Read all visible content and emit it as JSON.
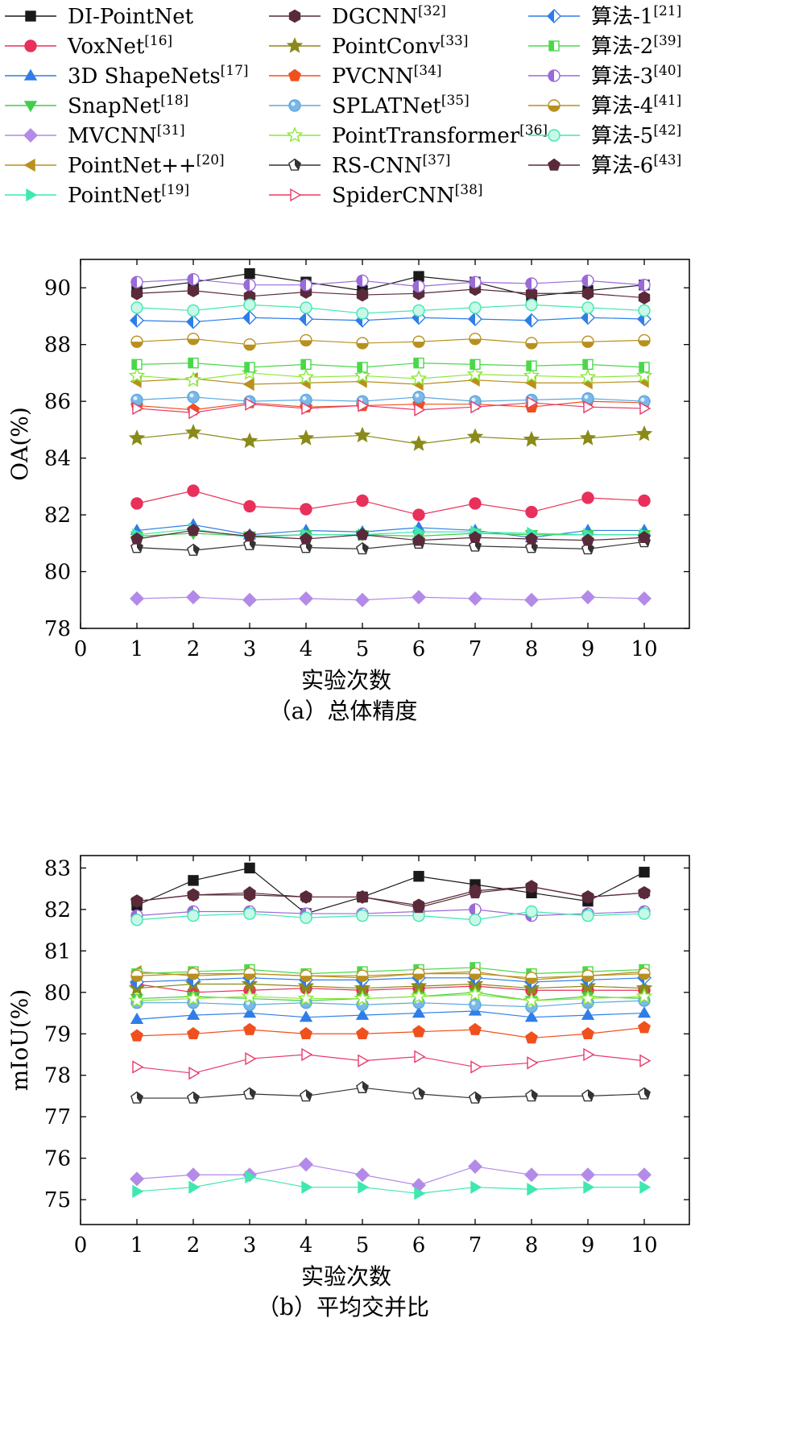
{
  "legend": [
    {
      "label": "DI-PointNet",
      "ref": "",
      "marker": "square",
      "color": "#1a1a1a",
      "fill": "#1a1a1a",
      "col": 0
    },
    {
      "label": "VoxNet",
      "ref": "[16]",
      "marker": "circle",
      "color": "#e8305a",
      "fill": "#e8305a",
      "col": 0
    },
    {
      "label": "3D ShapeNets",
      "ref": "[17]",
      "marker": "triangle-up",
      "color": "#2f7de8",
      "fill": "#2f7de8",
      "col": 0
    },
    {
      "label": "SnapNet",
      "ref": "[18]",
      "marker": "triangle-down",
      "color": "#3fcf4a",
      "fill": "#3fcf4a",
      "col": 0
    },
    {
      "label": "MVCNN",
      "ref": "[31]",
      "marker": "diamond",
      "color": "#b48ae8",
      "fill": "#b48ae8",
      "col": 0
    },
    {
      "label": "PointNet++",
      "ref": "[20]",
      "marker": "triangle-left",
      "color": "#b8901e",
      "fill": "#b8901e",
      "col": 0
    },
    {
      "label": "PointNet",
      "ref": "[19]",
      "marker": "triangle-right",
      "color": "#3ee8b0",
      "fill": "#3ee8b0",
      "col": 0
    },
    {
      "label": "DGCNN",
      "ref": "[32]",
      "marker": "hexagon",
      "color": "#5a2a3a",
      "fill": "#5a2a3a",
      "col": 1
    },
    {
      "label": "PointConv",
      "ref": "[33]",
      "marker": "star",
      "color": "#8a8a1a",
      "fill": "#8a8a1a",
      "col": 1
    },
    {
      "label": "PVCNN",
      "ref": "[34]",
      "marker": "pentagon",
      "color": "#f0501e",
      "fill": "#f0501e",
      "col": 1
    },
    {
      "label": "SPLATNet",
      "ref": "[35]",
      "marker": "circle-shaded",
      "color": "#5aa8e0",
      "fill": "#7ab8e8",
      "col": 1
    },
    {
      "label": "PointTransformer",
      "ref": "[36]",
      "marker": "star-open",
      "color": "#8ae83a",
      "fill": "none",
      "col": 1
    },
    {
      "label": "RS-CNN",
      "ref": "[37]",
      "marker": "pentagon-half",
      "color": "#333333",
      "fill": "#333333",
      "col": 1
    },
    {
      "label": "SpiderCNN",
      "ref": "[38]",
      "marker": "triangle-right-open",
      "color": "#e83a6a",
      "fill": "none",
      "col": 1
    },
    {
      "label": "算法-1",
      "ref": "[21]",
      "marker": "diamond-half",
      "color": "#2f7de8",
      "fill": "#2f7de8",
      "col": 2
    },
    {
      "label": "算法-2",
      "ref": "[39]",
      "marker": "square-half",
      "color": "#4ad84a",
      "fill": "#4ad84a",
      "col": 2
    },
    {
      "label": "算法-3",
      "ref": "[40]",
      "marker": "circle-half",
      "color": "#9a6ad8",
      "fill": "#9a6ad8",
      "col": 2
    },
    {
      "label": "算法-4",
      "ref": "[41]",
      "marker": "circle-half-h",
      "color": "#b8901e",
      "fill": "#b8901e",
      "col": 2
    },
    {
      "label": "算法-5",
      "ref": "[42]",
      "marker": "circle-open",
      "color": "#3ee8b0",
      "fill": "#c8f8e8",
      "col": 2
    },
    {
      "label": "算法-6",
      "ref": "[43]",
      "marker": "pentagon",
      "color": "#5a2a3a",
      "fill": "#5a2a3a",
      "col": 2
    }
  ],
  "chart_data": [
    {
      "type": "line",
      "caption": "（a）总体精度",
      "xlabel": "实验次数",
      "ylabel": "OA(%)",
      "xlim": [
        0,
        10.8
      ],
      "ylim": [
        78,
        91
      ],
      "x_ticks": [
        0,
        1,
        2,
        3,
        4,
        5,
        6,
        7,
        8,
        9,
        10
      ],
      "y_ticks": [
        78,
        80,
        82,
        84,
        86,
        88,
        90
      ],
      "x": [
        1,
        2,
        3,
        4,
        5,
        6,
        7,
        8,
        9,
        10
      ],
      "series": [
        {
          "name": "DI-PointNet",
          "values": [
            89.95,
            90.2,
            90.5,
            90.2,
            89.9,
            90.4,
            90.2,
            89.7,
            89.9,
            90.1
          ]
        },
        {
          "name": "VoxNet",
          "values": [
            82.4,
            82.85,
            82.3,
            82.2,
            82.5,
            82.0,
            82.4,
            82.1,
            82.6,
            82.5
          ]
        },
        {
          "name": "3D ShapeNets",
          "values": [
            81.45,
            81.65,
            81.3,
            81.45,
            81.4,
            81.55,
            81.45,
            81.2,
            81.45,
            81.45
          ]
        },
        {
          "name": "SnapNet",
          "values": [
            81.25,
            81.35,
            81.25,
            81.3,
            81.3,
            81.25,
            81.35,
            81.3,
            81.3,
            81.3
          ]
        },
        {
          "name": "MVCNN",
          "values": [
            79.05,
            79.1,
            79.0,
            79.05,
            79.0,
            79.1,
            79.05,
            79.0,
            79.1,
            79.05
          ]
        },
        {
          "name": "PointNet++",
          "values": [
            86.7,
            86.8,
            86.6,
            86.65,
            86.7,
            86.6,
            86.75,
            86.65,
            86.65,
            86.7
          ]
        },
        {
          "name": "PointNet",
          "values": [
            81.3,
            81.5,
            81.2,
            81.3,
            81.3,
            81.4,
            81.4,
            81.35,
            81.3,
            81.3
          ]
        },
        {
          "name": "DGCNN",
          "values": [
            89.8,
            89.9,
            89.7,
            89.85,
            89.75,
            89.8,
            89.95,
            89.8,
            89.8,
            89.65
          ]
        },
        {
          "name": "PointConv",
          "values": [
            84.7,
            84.9,
            84.6,
            84.7,
            84.8,
            84.5,
            84.75,
            84.65,
            84.7,
            84.85
          ]
        },
        {
          "name": "PVCNN",
          "values": [
            85.85,
            85.7,
            85.95,
            85.8,
            85.85,
            85.9,
            85.9,
            85.8,
            86.0,
            85.95
          ]
        },
        {
          "name": "SPLATNet",
          "values": [
            86.05,
            86.15,
            86.0,
            86.05,
            86.0,
            86.15,
            86.0,
            86.05,
            86.1,
            86.0
          ]
        },
        {
          "name": "PointTransformer",
          "values": [
            86.9,
            86.75,
            87.0,
            86.85,
            86.9,
            86.8,
            86.95,
            86.9,
            86.85,
            86.9
          ]
        },
        {
          "name": "RS-CNN",
          "values": [
            80.85,
            80.75,
            80.95,
            80.85,
            80.8,
            81.0,
            80.9,
            80.85,
            80.8,
            81.05
          ]
        },
        {
          "name": "SpiderCNN",
          "values": [
            85.75,
            85.6,
            85.9,
            85.75,
            85.85,
            85.7,
            85.8,
            85.95,
            85.8,
            85.75
          ]
        },
        {
          "name": "算法-1",
          "values": [
            88.85,
            88.8,
            88.95,
            88.9,
            88.85,
            88.95,
            88.9,
            88.85,
            88.95,
            88.9
          ]
        },
        {
          "name": "算法-2",
          "values": [
            87.3,
            87.35,
            87.2,
            87.3,
            87.2,
            87.35,
            87.3,
            87.25,
            87.3,
            87.2
          ]
        },
        {
          "name": "算法-3",
          "values": [
            90.2,
            90.3,
            90.1,
            90.1,
            90.25,
            90.05,
            90.2,
            90.15,
            90.25,
            90.1
          ]
        },
        {
          "name": "算法-4",
          "values": [
            88.1,
            88.2,
            88.0,
            88.15,
            88.05,
            88.1,
            88.2,
            88.05,
            88.1,
            88.15
          ]
        },
        {
          "name": "算法-5",
          "values": [
            89.3,
            89.2,
            89.4,
            89.3,
            89.1,
            89.2,
            89.3,
            89.4,
            89.3,
            89.2
          ]
        },
        {
          "name": "算法-6",
          "values": [
            81.15,
            81.45,
            81.25,
            81.15,
            81.3,
            81.1,
            81.2,
            81.15,
            81.1,
            81.2
          ]
        }
      ]
    },
    {
      "type": "line",
      "caption": "（b）平均交并比",
      "xlabel": "实验次数",
      "ylabel": "mIoU(%)",
      "xlim": [
        0,
        10.8
      ],
      "ylim": [
        74.4,
        83.3
      ],
      "x_ticks": [
        0,
        1,
        2,
        3,
        4,
        5,
        6,
        7,
        8,
        9,
        10
      ],
      "y_ticks": [
        75,
        76,
        77,
        78,
        79,
        80,
        81,
        82,
        83
      ],
      "x": [
        1,
        2,
        3,
        4,
        5,
        6,
        7,
        8,
        9,
        10
      ],
      "series": [
        {
          "name": "DI-PointNet",
          "values": [
            82.1,
            82.7,
            83.0,
            81.9,
            82.3,
            82.8,
            82.6,
            82.4,
            82.2,
            82.9
          ]
        },
        {
          "name": "VoxNet",
          "values": [
            80.2,
            80.0,
            80.05,
            80.1,
            80.05,
            80.1,
            80.15,
            80.05,
            80.05,
            80.05
          ]
        },
        {
          "name": "3D ShapeNets",
          "values": [
            79.35,
            79.45,
            79.5,
            79.4,
            79.45,
            79.5,
            79.55,
            79.4,
            79.45,
            79.5
          ]
        },
        {
          "name": "SnapNet",
          "values": [
            79.85,
            79.9,
            79.85,
            79.8,
            79.85,
            79.9,
            80.0,
            79.8,
            79.9,
            79.85
          ]
        },
        {
          "name": "MVCNN",
          "values": [
            75.5,
            75.6,
            75.6,
            75.85,
            75.6,
            75.35,
            75.8,
            75.6,
            75.6,
            75.6
          ]
        },
        {
          "name": "PointNet++",
          "values": [
            80.5,
            80.4,
            80.45,
            80.4,
            80.35,
            80.45,
            80.5,
            80.3,
            80.4,
            80.5
          ]
        },
        {
          "name": "PointNet",
          "values": [
            75.2,
            75.3,
            75.55,
            75.3,
            75.3,
            75.15,
            75.3,
            75.25,
            75.3,
            75.3
          ]
        },
        {
          "name": "DGCNN",
          "values": [
            82.2,
            82.35,
            82.35,
            82.3,
            82.3,
            82.1,
            82.45,
            82.55,
            82.3,
            82.4
          ]
        },
        {
          "name": "PointConv",
          "values": [
            80.1,
            80.2,
            80.2,
            80.15,
            80.1,
            80.15,
            80.2,
            80.1,
            80.15,
            80.1
          ]
        },
        {
          "name": "PVCNN",
          "values": [
            78.95,
            79.0,
            79.1,
            79.0,
            79.0,
            79.05,
            79.1,
            78.9,
            79.0,
            79.15
          ]
        },
        {
          "name": "SPLATNet",
          "values": [
            79.75,
            79.75,
            79.7,
            79.75,
            79.7,
            79.75,
            79.7,
            79.65,
            79.75,
            79.8
          ]
        },
        {
          "name": "PointTransformer",
          "values": [
            79.8,
            79.85,
            79.9,
            79.85,
            79.85,
            79.9,
            79.95,
            79.8,
            79.85,
            79.9
          ]
        },
        {
          "name": "RS-CNN",
          "values": [
            77.45,
            77.45,
            77.55,
            77.5,
            77.7,
            77.55,
            77.45,
            77.5,
            77.5,
            77.55
          ]
        },
        {
          "name": "SpiderCNN",
          "values": [
            78.2,
            78.05,
            78.4,
            78.5,
            78.35,
            78.45,
            78.2,
            78.3,
            78.5,
            78.35
          ]
        },
        {
          "name": "算法-1",
          "values": [
            80.25,
            80.3,
            80.35,
            80.3,
            80.3,
            80.35,
            80.35,
            80.25,
            80.3,
            80.35
          ]
        },
        {
          "name": "算法-2",
          "values": [
            80.45,
            80.5,
            80.55,
            80.45,
            80.5,
            80.55,
            80.6,
            80.45,
            80.5,
            80.55
          ]
        },
        {
          "name": "算法-3",
          "values": [
            81.85,
            81.95,
            81.95,
            81.9,
            81.9,
            81.95,
            82.0,
            81.85,
            81.9,
            81.95
          ]
        },
        {
          "name": "算法-4",
          "values": [
            80.4,
            80.45,
            80.45,
            80.4,
            80.4,
            80.45,
            80.45,
            80.35,
            80.4,
            80.45
          ]
        },
        {
          "name": "算法-5",
          "values": [
            81.75,
            81.85,
            81.9,
            81.8,
            81.85,
            81.85,
            81.75,
            81.95,
            81.85,
            81.9
          ]
        },
        {
          "name": "算法-6",
          "values": [
            82.2,
            82.35,
            82.4,
            82.3,
            82.3,
            82.05,
            82.4,
            82.55,
            82.3,
            82.4
          ]
        }
      ]
    }
  ]
}
